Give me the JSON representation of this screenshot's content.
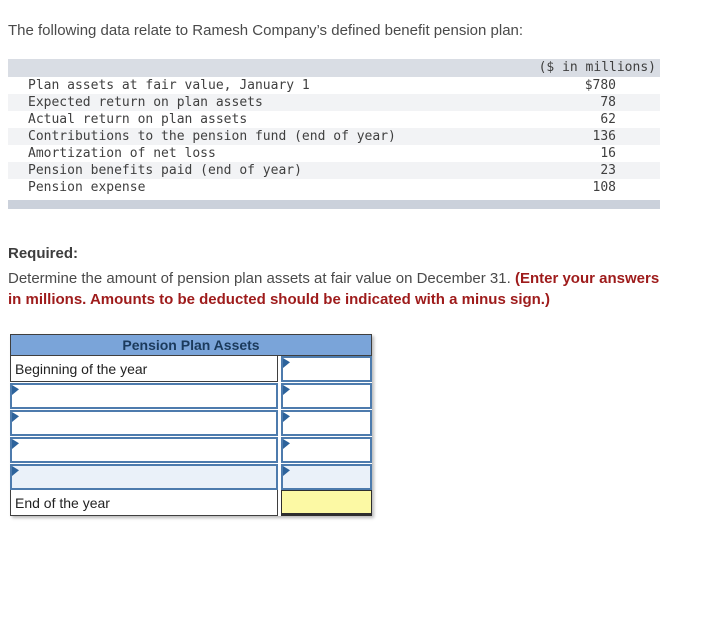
{
  "intro": {
    "text": "The following data relate to Ramesh Company’s defined benefit pension plan:"
  },
  "data_table": {
    "header": "($ in millions)",
    "rows": [
      {
        "label": "Plan assets at fair value, January 1",
        "value": "$780"
      },
      {
        "label": "Expected return on plan assets",
        "value": "78"
      },
      {
        "label": "Actual return on plan assets",
        "value": "62"
      },
      {
        "label": "Contributions to the pension fund (end of year)",
        "value": "136"
      },
      {
        "label": "Amortization of net loss",
        "value": "16"
      },
      {
        "label": "Pension benefits paid (end of year)",
        "value": "23"
      },
      {
        "label": "Pension expense",
        "value": "108"
      }
    ]
  },
  "required": {
    "heading": "Required:",
    "instruction": "Determine the amount of pension plan assets at fair value on December 31. ",
    "instruction_emphasis": "(Enter your answers in millions. Amounts to be deducted should be indicated with a minus sign.)"
  },
  "worksheet": {
    "title": "Pension Plan Assets",
    "rows": [
      {
        "type": "static-label",
        "label": "Beginning of the year",
        "value": ""
      },
      {
        "type": "input",
        "label": "",
        "value": ""
      },
      {
        "type": "input",
        "label": "",
        "value": ""
      },
      {
        "type": "input",
        "label": "",
        "value": ""
      },
      {
        "type": "input",
        "label": "",
        "value": ""
      },
      {
        "type": "total",
        "label": "End of the year",
        "value": ""
      }
    ]
  },
  "colors": {
    "header-blue": "#7aa4d9",
    "header-text": "#1b3a5c",
    "input-border": "#4d7bad",
    "flag-blue": "#2d639c",
    "row-tint": "#eaf1f9",
    "total-yellow": "#fcf9a4",
    "bar-top": "#d9dde4",
    "bar-bottom": "#cbd1db",
    "stripe": "#f2f3f5",
    "emphasis-red": "#9e1b1b",
    "text-gray": "#4a4a4a",
    "mono-text": "#3f3f3f",
    "dark-border": "#3f3f3f"
  }
}
